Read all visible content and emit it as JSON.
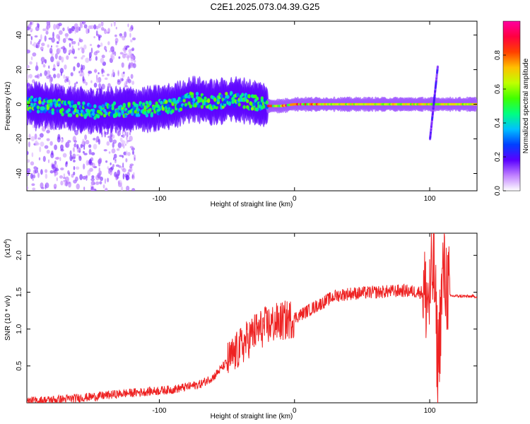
{
  "title": "C2E1.2025.073.04.39.G25",
  "chart_data": [
    {
      "type": "heatmap",
      "xlabel": "Height of straight line (km)",
      "ylabel": "Frequency (Hz)",
      "xlim": [
        -198,
        135
      ],
      "ylim": [
        -50,
        48
      ],
      "xticks": [
        -100,
        0,
        100
      ],
      "yticks": [
        -40,
        -20,
        0,
        20,
        40
      ],
      "colorbar": {
        "label": "Normalized spectral amplitude",
        "range": [
          0,
          1
        ],
        "ticks": [
          0.0,
          0.2,
          0.4,
          0.6,
          0.8
        ],
        "tick_labels": [
          "0.0",
          "0.2",
          "0.4",
          "0.6",
          "0.8"
        ],
        "colors": [
          "#ffffff",
          "#c080ff",
          "#5a00ff",
          "#0040ff",
          "#00c0ff",
          "#00ff80",
          "#40ff00",
          "#c0ff00",
          "#ffc000",
          "#ff4000",
          "#ff0040",
          "#ff00a0"
        ]
      },
      "ridge": {
        "description_values": [
          [
            -195,
            0
          ],
          [
            -170,
            -2
          ],
          [
            -150,
            -4
          ],
          [
            -130,
            -3
          ],
          [
            -110,
            -3
          ],
          [
            -90,
            -1
          ],
          [
            -75,
            3
          ],
          [
            -60,
            1
          ],
          [
            -45,
            3
          ],
          [
            -30,
            1
          ],
          [
            -20,
            -1
          ],
          [
            -10,
            -1
          ],
          [
            0,
            0
          ],
          [
            20,
            0
          ],
          [
            60,
            0
          ],
          [
            100,
            0
          ],
          [
            135,
            0
          ]
        ]
      },
      "spike": {
        "x": 103,
        "y_range": [
          -20,
          22
        ]
      }
    },
    {
      "type": "line",
      "xlabel": "Height of straight line (km)",
      "ylabel": "SNR (10 * v/v)",
      "multiplier_label": "(x10",
      "multiplier_exp": "4",
      "multiplier_close": ")",
      "xlim": [
        -198,
        135
      ],
      "ylim": [
        0,
        2.3
      ],
      "xticks": [
        -100,
        0,
        100
      ],
      "yticks": [
        0.5,
        1.0,
        1.5,
        2.0
      ],
      "ytick_labels": [
        "0.5",
        "1.0",
        "1.5",
        "2.0"
      ],
      "color": "#ee2222",
      "envelope": [
        [
          -198,
          0.02
        ],
        [
          -170,
          0.05
        ],
        [
          -150,
          0.08
        ],
        [
          -130,
          0.12
        ],
        [
          -110,
          0.15
        ],
        [
          -90,
          0.18
        ],
        [
          -70,
          0.25
        ],
        [
          -60,
          0.35
        ],
        [
          -50,
          0.55
        ],
        [
          -40,
          0.75
        ],
        [
          -30,
          0.95
        ],
        [
          -20,
          1.05
        ],
        [
          -10,
          1.1
        ],
        [
          0,
          1.15
        ],
        [
          10,
          1.25
        ],
        [
          20,
          1.35
        ],
        [
          30,
          1.45
        ],
        [
          40,
          1.48
        ],
        [
          60,
          1.5
        ],
        [
          80,
          1.52
        ],
        [
          95,
          1.5
        ],
        [
          100,
          1.4
        ],
        [
          103,
          1.9
        ],
        [
          106,
          0.5
        ],
        [
          110,
          1.8
        ],
        [
          115,
          1.45
        ],
        [
          135,
          1.44
        ]
      ]
    }
  ]
}
